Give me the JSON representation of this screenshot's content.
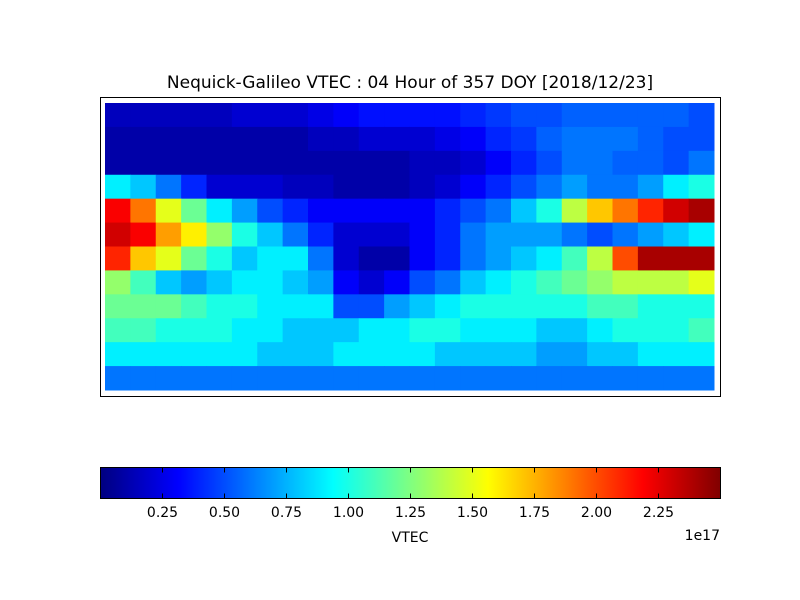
{
  "chart_data": {
    "type": "heatmap",
    "title": "Nequick-Galileo VTEC : 04 Hour of 357 DOY [2018/12/23]",
    "colormap": "jet",
    "clim": [
      0,
      2.5
    ],
    "colorbar_label": "VTEC",
    "colorbar_offset": "1e17",
    "colorbar_ticks": [
      0.25,
      {
        "value": 0.5,
        "label": "0.50"
      },
      0.75,
      {
        "value": 1,
        "label": "1.00"
      },
      1.25,
      {
        "value": 1.5,
        "label": "1.50"
      },
      1.75,
      {
        "value": 2,
        "label": "2.00"
      },
      2.25
    ],
    "values": [
      [
        0.15,
        0.15,
        0.15,
        0.15,
        0.15,
        0.2,
        0.2,
        0.2,
        0.25,
        0.3,
        0.35,
        0.35,
        0.35,
        0.35,
        0.4,
        0.45,
        0.5,
        0.5,
        0.55,
        0.55,
        0.55,
        0.55,
        0.55,
        0.5
      ],
      [
        0.1,
        0.1,
        0.1,
        0.1,
        0.1,
        0.1,
        0.1,
        0.1,
        0.15,
        0.15,
        0.2,
        0.2,
        0.2,
        0.25,
        0.3,
        0.4,
        0.45,
        0.55,
        0.6,
        0.6,
        0.6,
        0.55,
        0.5,
        0.5
      ],
      [
        0.1,
        0.1,
        0.1,
        0.1,
        0.1,
        0.1,
        0.1,
        0.1,
        0.1,
        0.1,
        0.1,
        0.1,
        0.15,
        0.15,
        0.2,
        0.3,
        0.4,
        0.5,
        0.6,
        0.6,
        0.55,
        0.55,
        0.5,
        0.6
      ],
      [
        0.9,
        0.8,
        0.6,
        0.4,
        0.2,
        0.2,
        0.2,
        0.15,
        0.15,
        0.1,
        0.1,
        0.1,
        0.15,
        0.2,
        0.3,
        0.4,
        0.5,
        0.6,
        0.7,
        0.6,
        0.6,
        0.7,
        0.9,
        1.0
      ],
      [
        2.2,
        1.9,
        1.5,
        1.2,
        0.9,
        0.7,
        0.5,
        0.4,
        0.3,
        0.3,
        0.3,
        0.3,
        0.3,
        0.4,
        0.5,
        0.6,
        0.8,
        1.0,
        1.4,
        1.7,
        1.9,
        2.1,
        2.3,
        2.4
      ],
      [
        2.3,
        2.2,
        1.8,
        1.6,
        1.3,
        1.0,
        0.8,
        0.6,
        0.4,
        0.2,
        0.2,
        0.2,
        0.3,
        0.4,
        0.6,
        0.7,
        0.7,
        0.7,
        0.6,
        0.5,
        0.6,
        0.7,
        0.8,
        0.9
      ],
      [
        2.1,
        1.7,
        1.5,
        1.2,
        1.0,
        0.8,
        0.9,
        0.9,
        0.6,
        0.2,
        0.1,
        0.1,
        0.3,
        0.4,
        0.6,
        0.7,
        0.8,
        0.9,
        1.1,
        1.4,
        2.0,
        2.4,
        2.4,
        2.4
      ],
      [
        1.3,
        1.1,
        0.8,
        0.7,
        0.8,
        0.9,
        0.9,
        0.8,
        0.7,
        0.3,
        0.2,
        0.3,
        0.5,
        0.6,
        0.8,
        0.9,
        1.0,
        1.1,
        1.2,
        1.3,
        1.4,
        1.4,
        1.4,
        1.5
      ],
      [
        1.2,
        1.2,
        1.2,
        1.1,
        1.0,
        1.0,
        0.9,
        0.9,
        0.9,
        0.5,
        0.5,
        0.7,
        0.8,
        0.9,
        1.0,
        1.0,
        1.0,
        1.0,
        1.0,
        1.1,
        1.1,
        1.0,
        1.0,
        1.0
      ],
      [
        1.1,
        1.1,
        1.0,
        1.0,
        1.0,
        0.9,
        0.9,
        0.8,
        0.8,
        0.8,
        0.9,
        0.9,
        1.0,
        1.0,
        0.9,
        0.9,
        0.9,
        0.8,
        0.8,
        0.9,
        1.0,
        1.0,
        1.0,
        1.1
      ],
      [
        0.9,
        0.9,
        0.9,
        0.9,
        0.9,
        0.9,
        0.8,
        0.8,
        0.8,
        0.9,
        0.9,
        0.9,
        0.9,
        0.8,
        0.8,
        0.8,
        0.8,
        0.7,
        0.7,
        0.8,
        0.8,
        0.9,
        0.9,
        0.9
      ],
      [
        0.6,
        0.6,
        0.6,
        0.6,
        0.6,
        0.6,
        0.6,
        0.6,
        0.6,
        0.6,
        0.6,
        0.6,
        0.6,
        0.6,
        0.6,
        0.6,
        0.6,
        0.6,
        0.6,
        0.6,
        0.6,
        0.6,
        0.6,
        0.6
      ]
    ]
  }
}
